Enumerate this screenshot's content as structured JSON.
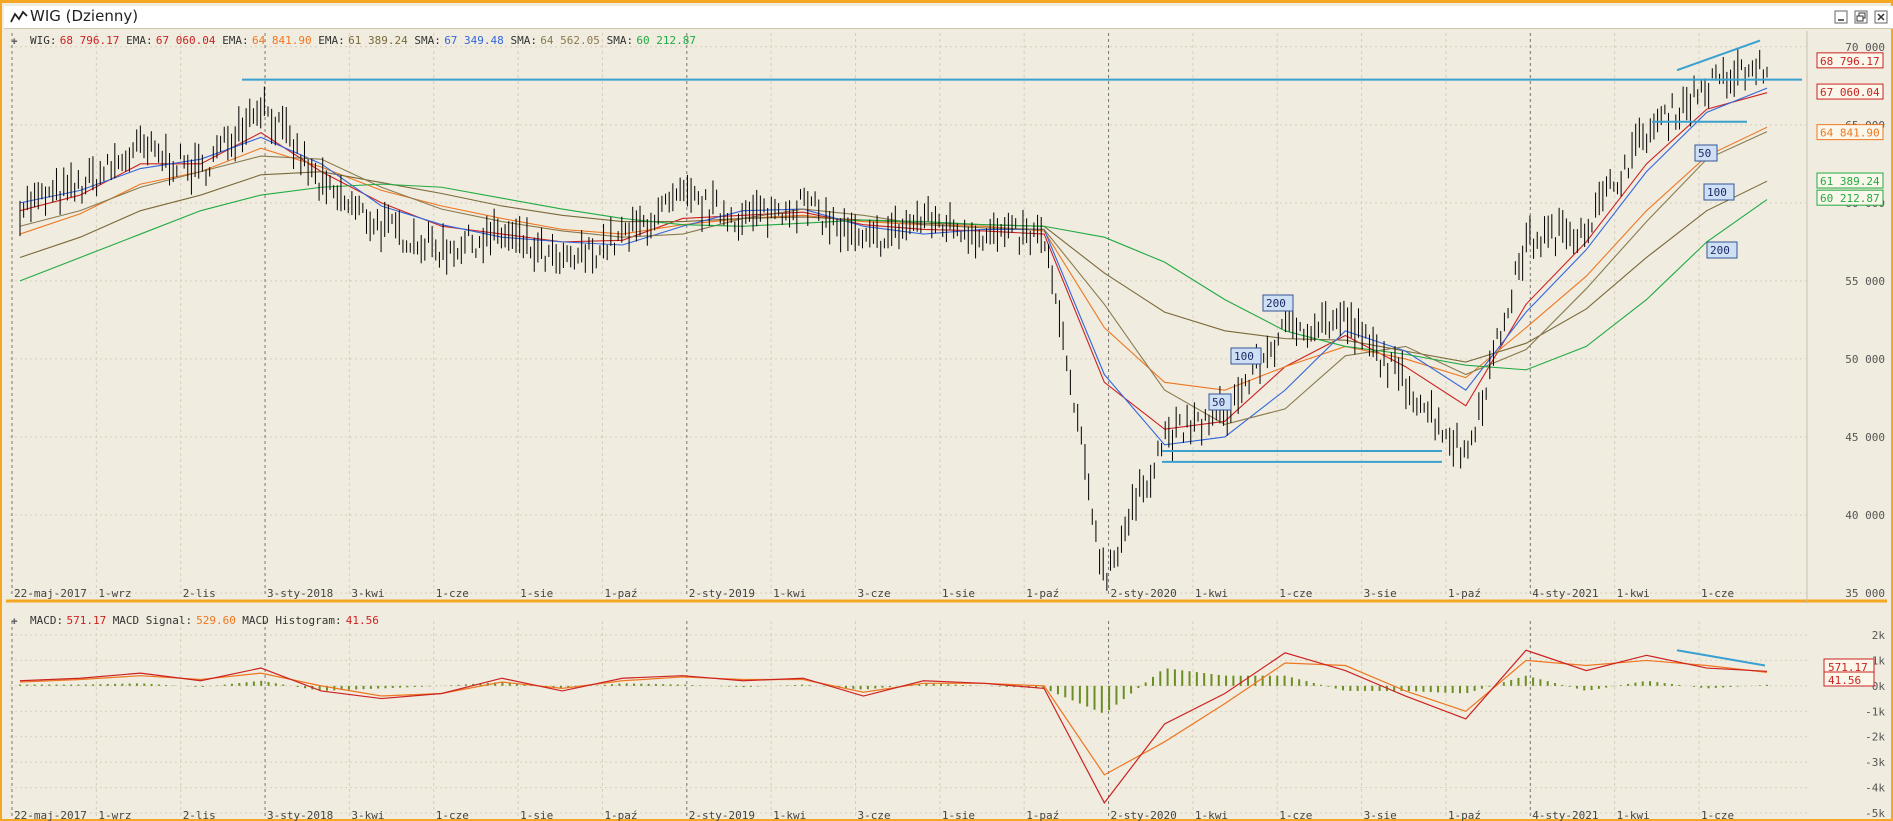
{
  "window": {
    "title": "WIG (Dzienny)",
    "controls": [
      "minimize-icon",
      "restore-icon",
      "close-icon"
    ]
  },
  "colors": {
    "frame": "#f5a623",
    "background": "#f0ecdf",
    "price": "#000000",
    "ema_short": "#cc2222",
    "ema_mid": "#ee7722",
    "ema_long": "#7a6a3a",
    "sma_short": "#3366dd",
    "sma_mid": "#8a7a50",
    "sma_long": "#22aa44",
    "trendline": "#3aa0d0",
    "macd": "#cc2222",
    "signal": "#ee7722",
    "histogram": "#6b8e23"
  },
  "price_panel": {
    "legend": [
      {
        "label": "WIG:",
        "value": "68 796.17",
        "color": "#cc2222"
      },
      {
        "label": "EMA:",
        "value": "67 060.04",
        "color": "#cc2222"
      },
      {
        "label": "EMA:",
        "value": "64 841.90",
        "color": "#ee7722"
      },
      {
        "label": "EMA:",
        "value": "61 389.24",
        "color": "#7a6a3a"
      },
      {
        "label": "SMA:",
        "value": "67 349.48",
        "color": "#3366dd"
      },
      {
        "label": "SMA:",
        "value": "64 562.05",
        "color": "#8a7a50"
      },
      {
        "label": "SMA:",
        "value": "60 212.87",
        "color": "#22aa44"
      }
    ],
    "y_ticks": [
      "70 000",
      "65 000",
      "60 000",
      "55 000",
      "50 000",
      "45 000",
      "40 000",
      "35 000"
    ],
    "x_ticks": [
      "22-maj-2017",
      "1-wrz",
      "2-lis",
      "3-sty-2018",
      "3-kwi",
      "1-cze",
      "1-sie",
      "1-paź",
      "2-sty-2019",
      "1-kwi",
      "3-cze",
      "1-sie",
      "1-paź",
      "2-sty-2020",
      "1-kwi",
      "1-cze",
      "3-sie",
      "1-paź",
      "4-sty-2021",
      "1-kwi",
      "1-cze"
    ],
    "value_tags": [
      {
        "text": "68 796.17",
        "color": "#cc2222"
      },
      {
        "text": "67 060.04",
        "color": "#cc2222"
      },
      {
        "text": "64 841.90",
        "color": "#ee7722"
      },
      {
        "text": "61 389.24",
        "color": "#22aa44"
      },
      {
        "text": "60 212.87",
        "color": "#22aa44"
      }
    ],
    "ma_labels": [
      "50",
      "100",
      "200",
      "50",
      "100",
      "200"
    ]
  },
  "macd_panel": {
    "legend": [
      {
        "label": "MACD:",
        "value": "571.17",
        "color": "#cc2222"
      },
      {
        "label": "MACD Signal:",
        "value": "529.60",
        "color": "#ee7722"
      },
      {
        "label": "MACD Histogram:",
        "value": "41.56",
        "color": "#cc2222"
      }
    ],
    "y_ticks": [
      "2k",
      "1k",
      "0k",
      "-1k",
      "-2k",
      "-3k",
      "-4k",
      "-5k"
    ],
    "value_tags": [
      {
        "text": "571.17",
        "color": "#cc2222"
      },
      {
        "text": "41.56",
        "color": "#cc2222"
      }
    ]
  },
  "chart_data": {
    "type": "line",
    "title": "WIG (Dzienny)",
    "x": [
      "2017-05",
      "2017-07",
      "2017-09",
      "2017-11",
      "2018-01",
      "2018-03",
      "2018-05",
      "2018-07",
      "2018-09",
      "2018-11",
      "2019-01",
      "2019-03",
      "2019-05",
      "2019-07",
      "2019-09",
      "2019-11",
      "2020-01",
      "2020-02",
      "2020-03",
      "2020-04",
      "2020-05",
      "2020-06",
      "2020-08",
      "2020-10",
      "2020-11",
      "2021-01",
      "2021-03",
      "2021-05",
      "2021-06",
      "2021-07"
    ],
    "series": [
      {
        "name": "WIG",
        "values": [
          59800,
          61000,
          63500,
          62000,
          66500,
          61000,
          58500,
          57000,
          58000,
          56000,
          57800,
          60300,
          59000,
          60000,
          57300,
          59000,
          58000,
          57800,
          36000,
          45000,
          46500,
          52000,
          52500,
          48500,
          43800,
          57500,
          58500,
          64500,
          67500,
          68796
        ]
      },
      {
        "name": "EMA",
        "values": [
          59500,
          60500,
          62500,
          62500,
          64500,
          62000,
          60000,
          58500,
          58000,
          57500,
          57600,
          59000,
          59200,
          59400,
          58600,
          58300,
          58200,
          58000,
          48500,
          45500,
          46000,
          49500,
          51500,
          49500,
          47000,
          53500,
          57500,
          62500,
          66000,
          67060
        ]
      },
      {
        "name": "EMA",
        "values": [
          58000,
          59300,
          61200,
          62000,
          63500,
          62300,
          60800,
          59800,
          59000,
          58300,
          58000,
          58600,
          59000,
          59200,
          58800,
          58600,
          58500,
          58200,
          52000,
          48500,
          48000,
          49500,
          50800,
          50000,
          48800,
          52000,
          55300,
          59500,
          63000,
          64842
        ]
      },
      {
        "name": "EMA",
        "values": [
          56500,
          57800,
          59500,
          60500,
          61800,
          62000,
          61300,
          60600,
          59800,
          59200,
          58800,
          58800,
          59000,
          59100,
          58900,
          58700,
          58600,
          58500,
          55500,
          53000,
          51800,
          51300,
          51200,
          50500,
          49800,
          51000,
          53200,
          56500,
          59500,
          61389
        ]
      },
      {
        "name": "SMA",
        "values": [
          60000,
          60800,
          62200,
          62800,
          64200,
          62500,
          59800,
          58600,
          57800,
          57500,
          57300,
          58500,
          59500,
          59600,
          58500,
          58000,
          58300,
          58300,
          49000,
          44500,
          45000,
          48000,
          51800,
          50500,
          48000,
          53000,
          57000,
          62000,
          65800,
          67349
        ]
      },
      {
        "name": "SMA",
        "values": [
          58500,
          59500,
          61000,
          62000,
          63000,
          62800,
          61000,
          59600,
          58800,
          58200,
          57800,
          58000,
          59000,
          59600,
          59200,
          58600,
          58400,
          58300,
          53500,
          48000,
          45800,
          46800,
          50200,
          50800,
          49000,
          50600,
          54500,
          58800,
          62800,
          64562
        ]
      },
      {
        "name": "SMA",
        "values": [
          55000,
          56500,
          58000,
          59500,
          60500,
          61000,
          61200,
          61000,
          60300,
          59600,
          59000,
          58600,
          58500,
          58700,
          58900,
          58800,
          58600,
          58500,
          57800,
          56200,
          53800,
          51800,
          50800,
          50300,
          49600,
          49300,
          50800,
          53800,
          57500,
          60213
        ]
      }
    ],
    "macd": {
      "name": "MACD",
      "values": [
        200,
        300,
        500,
        200,
        700,
        -200,
        -500,
        -300,
        300,
        -200,
        300,
        400,
        200,
        300,
        -400,
        200,
        100,
        -100,
        -4600,
        -1500,
        -300,
        1300,
        600,
        -400,
        -1300,
        1400,
        600,
        1200,
        700,
        571
      ]
    },
    "macd_signal": {
      "name": "MACD Signal",
      "values": [
        150,
        250,
        400,
        250,
        500,
        0,
        -400,
        -300,
        150,
        -100,
        200,
        350,
        250,
        250,
        -250,
        100,
        100,
        0,
        -3500,
        -2200,
        -700,
        900,
        800,
        -200,
        -1000,
        1000,
        800,
        1000,
        800,
        530
      ]
    },
    "macd_histogram": {
      "name": "MACD Histogram",
      "values": [
        50,
        50,
        100,
        -50,
        200,
        -200,
        -100,
        0,
        150,
        -100,
        100,
        50,
        -50,
        50,
        -150,
        100,
        0,
        -100,
        -1100,
        700,
        400,
        400,
        -200,
        -200,
        -300,
        400,
        -200,
        200,
        -100,
        42
      ]
    },
    "ylim": [
      35000,
      70500
    ],
    "macd_ylim": [
      -5000,
      2000
    ],
    "grid": true,
    "legend": "top-left"
  }
}
